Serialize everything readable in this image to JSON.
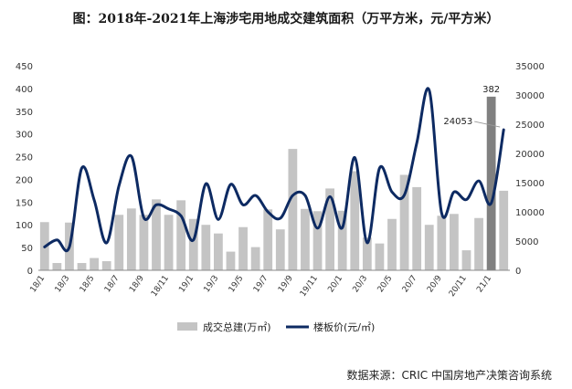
{
  "chart_data": {
    "type": "bar+line",
    "title": "图：2018年-2021年上海涉宅用地成交建筑面积（万平方米，元/平方米）",
    "categories": [
      "18/1",
      "18/2",
      "18/3",
      "18/4",
      "18/5",
      "18/6",
      "18/7",
      "18/8",
      "18/9",
      "18/10",
      "18/11",
      "18/12",
      "19/1",
      "19/2",
      "19/3",
      "19/4",
      "19/5",
      "19/6",
      "19/7",
      "19/8",
      "19/9",
      "19/10",
      "19/11",
      "19/12",
      "20/1",
      "20/2",
      "20/3",
      "20/4",
      "20/5",
      "20/6",
      "20/7",
      "20/8",
      "20/9",
      "20/10",
      "20/11",
      "20/12",
      "21/1",
      "21/2"
    ],
    "xtick_labels": [
      "18/1",
      "18/3",
      "18/5",
      "18/7",
      "18/9",
      "18/11",
      "19/1",
      "19/3",
      "19/5",
      "19/7",
      "19/9",
      "19/11",
      "20/1",
      "20/3",
      "20/5",
      "20/7",
      "20/9",
      "20/11",
      "21/1"
    ],
    "series": [
      {
        "name": "成交总建(万㎡)",
        "type": "bar",
        "axis": "left",
        "color": "#c4c4c4",
        "values": [
          106,
          16,
          105,
          16,
          27,
          20,
          122,
          136,
          122,
          156,
          122,
          154,
          113,
          100,
          81,
          41,
          95,
          51,
          134,
          90,
          267,
          135,
          130,
          180,
          131,
          218,
          72,
          59,
          113,
          210,
          183,
          100,
          120,
          124,
          44,
          115,
          382,
          175
        ]
      },
      {
        "name": "楼板价(元/㎡)",
        "type": "line",
        "axis": "right",
        "color": "#0d2a62",
        "values": [
          4000,
          5200,
          4000,
          17500,
          12000,
          4700,
          14500,
          19500,
          9000,
          11200,
          10500,
          9300,
          5200,
          14800,
          8700,
          14700,
          11200,
          12800,
          10000,
          8900,
          12800,
          12800,
          7200,
          12600,
          7300,
          19300,
          4700,
          17500,
          13400,
          12900,
          21800,
          30800,
          9800,
          13400,
          12100,
          15300,
          11500,
          24053
        ]
      }
    ],
    "highlight": {
      "index": 36,
      "color": "#808080"
    },
    "annotations": [
      {
        "series": 0,
        "index": 36,
        "text": "382"
      },
      {
        "series": 1,
        "index": 37,
        "text": "24053"
      }
    ],
    "left_axis": {
      "min": 0,
      "max": 450,
      "step": 50,
      "ticks": [
        "0",
        "50",
        "100",
        "150",
        "200",
        "250",
        "300",
        "350",
        "400",
        "450"
      ]
    },
    "right_axis": {
      "min": 0,
      "max": 35000,
      "step": 5000,
      "ticks": [
        "0",
        "5000",
        "10000",
        "15000",
        "20000",
        "25000",
        "30000",
        "35000"
      ]
    },
    "legend": {
      "bar_label": "成交总建(万㎡)",
      "line_label": "楼板价(元/㎡)",
      "position": "bottom"
    },
    "source": "数据来源：CRIC 中国房地产决策咨询系统"
  }
}
